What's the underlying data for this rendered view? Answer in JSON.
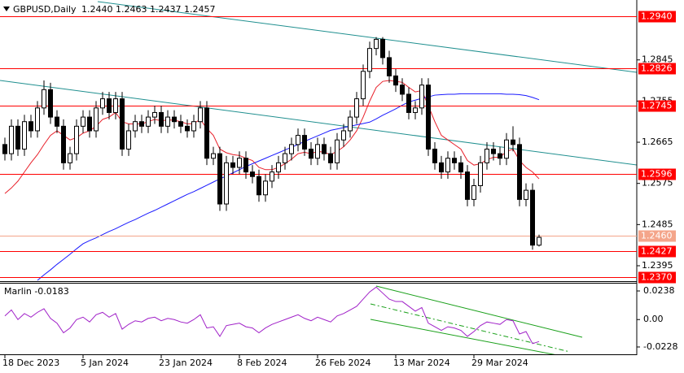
{
  "chart_data": [
    {
      "type": "candlestick",
      "title": "GBPUSD,Daily",
      "subtitle": "1.2440 1.2463 1.2437 1.2457",
      "categories": [
        "18 Dec 2023",
        null,
        null,
        null,
        null,
        null,
        null,
        null,
        null,
        null,
        null,
        null,
        "5 Jan 2024",
        null,
        null,
        null,
        null,
        null,
        null,
        null,
        null,
        null,
        null,
        null,
        "23 Jan 2024",
        null,
        null,
        null,
        null,
        null,
        null,
        null,
        null,
        null,
        null,
        null,
        "8 Feb 2024",
        null,
        null,
        null,
        null,
        null,
        null,
        null,
        null,
        null,
        null,
        null,
        "26 Feb 2024",
        null,
        null,
        null,
        null,
        null,
        null,
        null,
        null,
        null,
        null,
        null,
        "13 Mar 2024",
        null,
        null,
        null,
        null,
        null,
        null,
        null,
        null,
        null,
        null,
        null,
        "29 Mar 2024",
        null,
        null,
        null,
        null,
        null,
        null,
        null,
        null,
        null,
        null
      ],
      "open": [
        1.266,
        1.264,
        1.27,
        1.265,
        1.271,
        1.269,
        1.274,
        1.278,
        1.272,
        1.27,
        1.262,
        1.264,
        1.27,
        1.272,
        1.269,
        1.274,
        1.276,
        1.273,
        1.276,
        1.265,
        1.269,
        1.271,
        1.27,
        1.272,
        1.273,
        1.27,
        1.272,
        1.271,
        1.27,
        1.269,
        1.271,
        1.274,
        1.263,
        1.264,
        1.253,
        1.262,
        1.261,
        1.263,
        1.26,
        1.259,
        1.255,
        1.258,
        1.26,
        1.262,
        1.264,
        1.266,
        1.268,
        1.265,
        1.263,
        1.266,
        1.264,
        1.262,
        1.267,
        1.269,
        1.272,
        1.276,
        1.282,
        1.287,
        1.289,
        1.285,
        1.281,
        1.279,
        1.277,
        1.273,
        1.274,
        1.279,
        1.265,
        1.262,
        1.26,
        1.263,
        1.262,
        1.26,
        1.254,
        1.257,
        1.262,
        1.265,
        1.264,
        1.263,
        1.267,
        1.266,
        1.254,
        1.256,
        1.244
      ],
      "high": [
        1.2675,
        1.2715,
        1.2715,
        1.2725,
        1.2725,
        1.2755,
        1.28,
        1.2795,
        1.2735,
        1.2715,
        1.2655,
        1.2715,
        1.2735,
        1.2735,
        1.2755,
        1.2775,
        1.2775,
        1.2775,
        1.2775,
        1.2705,
        1.2725,
        1.2725,
        1.2735,
        1.2745,
        1.2745,
        1.2735,
        1.2735,
        1.2725,
        1.2715,
        1.2725,
        1.2755,
        1.2755,
        1.2655,
        1.2655,
        1.2635,
        1.2635,
        1.2645,
        1.2645,
        1.2615,
        1.2605,
        1.2595,
        1.2615,
        1.2635,
        1.2655,
        1.2675,
        1.2695,
        1.2695,
        1.2665,
        1.2675,
        1.2675,
        1.2655,
        1.2685,
        1.2705,
        1.2735,
        1.2775,
        1.2835,
        1.2885,
        1.2895,
        1.2895,
        1.2865,
        1.2825,
        1.2805,
        1.2785,
        1.2755,
        1.2805,
        1.2805,
        1.2665,
        1.2635,
        1.2645,
        1.2645,
        1.2635,
        1.2615,
        1.2585,
        1.2635,
        1.2665,
        1.2665,
        1.2655,
        1.2685,
        1.27,
        1.2675,
        1.2575,
        1.2575,
        1.2463
      ],
      "low": [
        1.2625,
        1.2625,
        1.2635,
        1.2635,
        1.2675,
        1.2675,
        1.2725,
        1.2705,
        1.2685,
        1.2605,
        1.2605,
        1.2625,
        1.2685,
        1.2675,
        1.2675,
        1.2725,
        1.2715,
        1.2715,
        1.2635,
        1.2635,
        1.2675,
        1.2685,
        1.2685,
        1.2705,
        1.2685,
        1.2685,
        1.2695,
        1.2685,
        1.2675,
        1.2675,
        1.2695,
        1.2615,
        1.2615,
        1.2515,
        1.2515,
        1.2595,
        1.2595,
        1.2585,
        1.2575,
        1.2535,
        1.2535,
        1.2565,
        1.2585,
        1.2605,
        1.2625,
        1.2645,
        1.2635,
        1.2615,
        1.2615,
        1.2625,
        1.2605,
        1.2605,
        1.2655,
        1.2675,
        1.2705,
        1.2745,
        1.2805,
        1.2855,
        1.2835,
        1.2795,
        1.2775,
        1.2755,
        1.2715,
        1.2715,
        1.2725,
        1.2635,
        1.2605,
        1.2585,
        1.2585,
        1.2605,
        1.2585,
        1.2525,
        1.2525,
        1.2555,
        1.2605,
        1.2625,
        1.2615,
        1.2615,
        1.2645,
        1.2525,
        1.2525,
        1.243,
        1.2437
      ],
      "close": [
        1.264,
        1.27,
        1.265,
        1.271,
        1.269,
        1.274,
        1.278,
        1.272,
        1.27,
        1.262,
        1.264,
        1.27,
        1.272,
        1.269,
        1.274,
        1.276,
        1.273,
        1.276,
        1.265,
        1.269,
        1.271,
        1.27,
        1.272,
        1.273,
        1.27,
        1.272,
        1.271,
        1.27,
        1.269,
        1.271,
        1.274,
        1.263,
        1.264,
        1.253,
        1.262,
        1.261,
        1.263,
        1.26,
        1.259,
        1.255,
        1.258,
        1.26,
        1.262,
        1.264,
        1.266,
        1.268,
        1.265,
        1.263,
        1.266,
        1.264,
        1.262,
        1.267,
        1.269,
        1.272,
        1.276,
        1.282,
        1.287,
        1.289,
        1.285,
        1.281,
        1.279,
        1.277,
        1.273,
        1.274,
        1.279,
        1.265,
        1.262,
        1.26,
        1.263,
        1.262,
        1.26,
        1.254,
        1.257,
        1.262,
        1.265,
        1.264,
        1.263,
        1.267,
        1.266,
        1.254,
        1.256,
        1.244,
        1.2457
      ],
      "overlays": [
        {
          "color": "#e8202a",
          "values": [
            1.2553,
            1.2565,
            1.258,
            1.26,
            1.262,
            1.2638,
            1.266,
            1.268,
            1.269,
            1.268,
            1.267,
            1.2675,
            1.2685,
            1.269,
            1.27,
            1.2715,
            1.272,
            1.273,
            1.271,
            1.2705,
            1.2705,
            1.2705,
            1.271,
            1.2715,
            1.2712,
            1.2714,
            1.2713,
            1.271,
            1.2705,
            1.2706,
            1.2715,
            1.2695,
            1.268,
            1.265,
            1.2642,
            1.2638,
            1.2636,
            1.263,
            1.2625,
            1.261,
            1.2605,
            1.2605,
            1.261,
            1.2618,
            1.2628,
            1.264,
            1.2643,
            1.264,
            1.2645,
            1.2643,
            1.2638,
            1.2645,
            1.2655,
            1.267,
            1.269,
            1.272,
            1.2755,
            1.2785,
            1.2798,
            1.28,
            1.2798,
            1.2796,
            1.2785,
            1.2775,
            1.2778,
            1.2745,
            1.271,
            1.268,
            1.267,
            1.266,
            1.265,
            1.2625,
            1.2615,
            1.2618,
            1.2627,
            1.2632,
            1.2632,
            1.2645,
            1.265,
            1.2625,
            1.261,
            1.26,
            1.2585
          ]
        },
        {
          "color": "#1a1aff",
          "values": [
            null,
            null,
            null,
            null,
            null,
            1.2363,
            1.2375,
            1.2386,
            1.2398,
            1.2409,
            1.242,
            1.2432,
            1.2443,
            1.245,
            1.2456,
            1.2463,
            1.247,
            1.2476,
            1.2483,
            1.249,
            1.2496,
            1.2503,
            1.251,
            1.2516,
            1.2523,
            1.253,
            1.2537,
            1.2544,
            1.2551,
            1.2557,
            1.2564,
            1.2571,
            1.2578,
            1.2585,
            1.2591,
            1.2598,
            1.2605,
            1.2612,
            1.2618,
            1.2624,
            1.263,
            1.2636,
            1.2642,
            1.2648,
            1.2654,
            1.266,
            1.2667,
            1.2673,
            1.2679,
            1.2685,
            1.2691,
            1.2694,
            1.2697,
            1.27,
            1.2703,
            1.2706,
            1.2709,
            1.2716,
            1.2724,
            1.2731,
            1.2738,
            1.2746,
            1.2753,
            1.2757,
            1.2761,
            1.2764,
            1.2768,
            1.2769,
            1.277,
            1.277,
            1.2771,
            1.2771,
            1.2771,
            1.2771,
            1.2771,
            1.2771,
            1.2771,
            1.277,
            1.277,
            1.2769,
            1.2767,
            1.2763,
            1.2758
          ]
        }
      ],
      "levels": [
        {
          "value": 1.294,
          "label": "1.2940",
          "color": "#ff0000"
        },
        {
          "value": 1.2826,
          "label": "1.2826",
          "color": "#ff0000"
        },
        {
          "value": 1.2745,
          "label": "1.2745",
          "color": "#ff0000"
        },
        {
          "value": 1.2596,
          "label": "1.2596",
          "color": "#ff0000"
        },
        {
          "value": 1.246,
          "label": "1.2460",
          "color": "#f4a58a"
        },
        {
          "value": 1.2427,
          "label": "1.2427",
          "color": "#ff0000"
        },
        {
          "value": 1.237,
          "label": "1.2370",
          "color": "#ff0000"
        }
      ],
      "ylim": [
        1.2363,
        1.2976
      ],
      "yticks": [
        1.2845,
        1.2755,
        1.2665,
        1.2575,
        1.2485,
        1.2395
      ],
      "bull_color": "#ffffff",
      "bear_color": "#000000"
    },
    {
      "type": "line",
      "title": "Marlin -0.0183",
      "series": [
        {
          "color": "#a020c8",
          "values": [
            0.003,
            0.008,
            0.0,
            0.005,
            0.002,
            0.006,
            0.009,
            0.001,
            -0.003,
            -0.011,
            -0.007,
            0.0,
            0.002,
            -0.002,
            0.004,
            0.006,
            0.002,
            0.005,
            -0.008,
            -0.004,
            -0.001,
            -0.002,
            0.001,
            0.002,
            -0.001,
            0.001,
            0.0,
            -0.002,
            -0.003,
            0.0,
            0.004,
            -0.007,
            -0.006,
            -0.014,
            -0.005,
            -0.004,
            -0.003,
            -0.006,
            -0.007,
            -0.011,
            -0.007,
            -0.004,
            -0.002,
            0.0,
            0.002,
            0.004,
            0.001,
            -0.001,
            0.002,
            0.0,
            -0.002,
            0.003,
            0.005,
            0.008,
            0.011,
            0.017,
            0.023,
            0.027,
            0.022,
            0.017,
            0.015,
            0.015,
            0.011,
            0.007,
            0.01,
            -0.003,
            -0.006,
            -0.009,
            -0.006,
            -0.007,
            -0.009,
            -0.014,
            -0.01,
            -0.005,
            -0.002,
            -0.003,
            -0.004,
            0.0,
            -0.001,
            -0.012,
            -0.01,
            -0.02,
            -0.0183
          ]
        }
      ],
      "ylim": [
        -0.0289,
        0.0299
      ],
      "yticks": [
        0.0238,
        {
          "value": 0,
          "label": "0.00"
        },
        -0.0228
      ]
    }
  ]
}
